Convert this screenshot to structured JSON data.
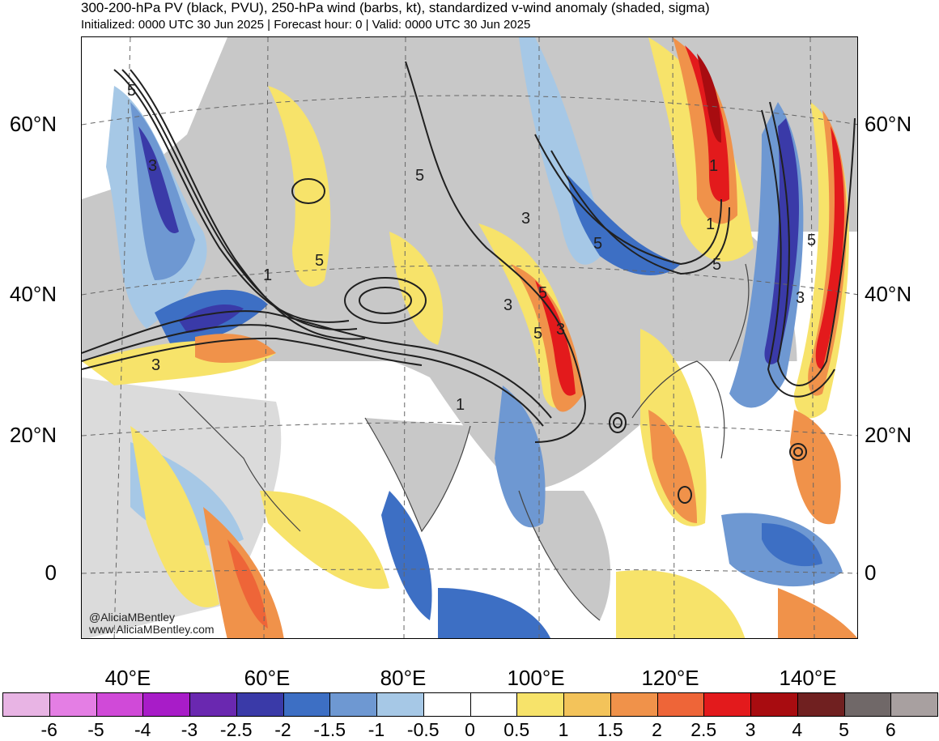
{
  "header": {
    "title": "300-200-hPa PV (black, PVU), 250-hPa wind (barbs, kt), standardized v-wind anomaly (shaded, sigma)",
    "subtitle": "Initialized: 0000 UTC 30 Jun 2025 | Forecast hour: 0 | Valid: 0000 UTC 30 Jun 2025"
  },
  "map": {
    "lat_labels": [
      "60°N",
      "40°N",
      "20°N",
      "0"
    ],
    "lon_labels": [
      "40°E",
      "60°E",
      "80°E",
      "100°E",
      "120°E",
      "140°E"
    ],
    "contour_labels": [
      "5",
      "3",
      "1",
      "5",
      "3",
      "5",
      "3",
      "1",
      "5",
      "3",
      "5",
      "1",
      "5",
      "3",
      "5",
      "5",
      "3",
      "1"
    ],
    "colors": {
      "land": "#c8c8c8",
      "neg_strong": "#3a3aa8",
      "neg_mid": "#3d6fc4",
      "neg_weak": "#a6c8e6",
      "pos_weak": "#f7e36a",
      "pos_mid": "#f0924a",
      "pos_strong": "#e31a1c",
      "contour": "#202020"
    }
  },
  "credit": {
    "handle": "@AliciaMBentley",
    "site": "www.AliciaMBentley.com"
  },
  "colorbar": {
    "colors": [
      "#e8b4e4",
      "#e47ee4",
      "#d04ad8",
      "#a81cc8",
      "#6a28b0",
      "#3a3aa8",
      "#3d6fc4",
      "#6e98d2",
      "#a6c8e6",
      "#ffffff",
      "#ffffff",
      "#f7e36a",
      "#f3c35a",
      "#f0924a",
      "#ee6538",
      "#e31a1c",
      "#a80c10",
      "#702020",
      "#706868",
      "#a8a0a0"
    ],
    "labels": [
      "-6",
      "-5",
      "-4",
      "-3",
      "-2.5",
      "-2",
      "-1.5",
      "-1",
      "-0.5",
      "0",
      "0.5",
      "1",
      "1.5",
      "2",
      "2.5",
      "3",
      "4",
      "5",
      "6"
    ]
  }
}
